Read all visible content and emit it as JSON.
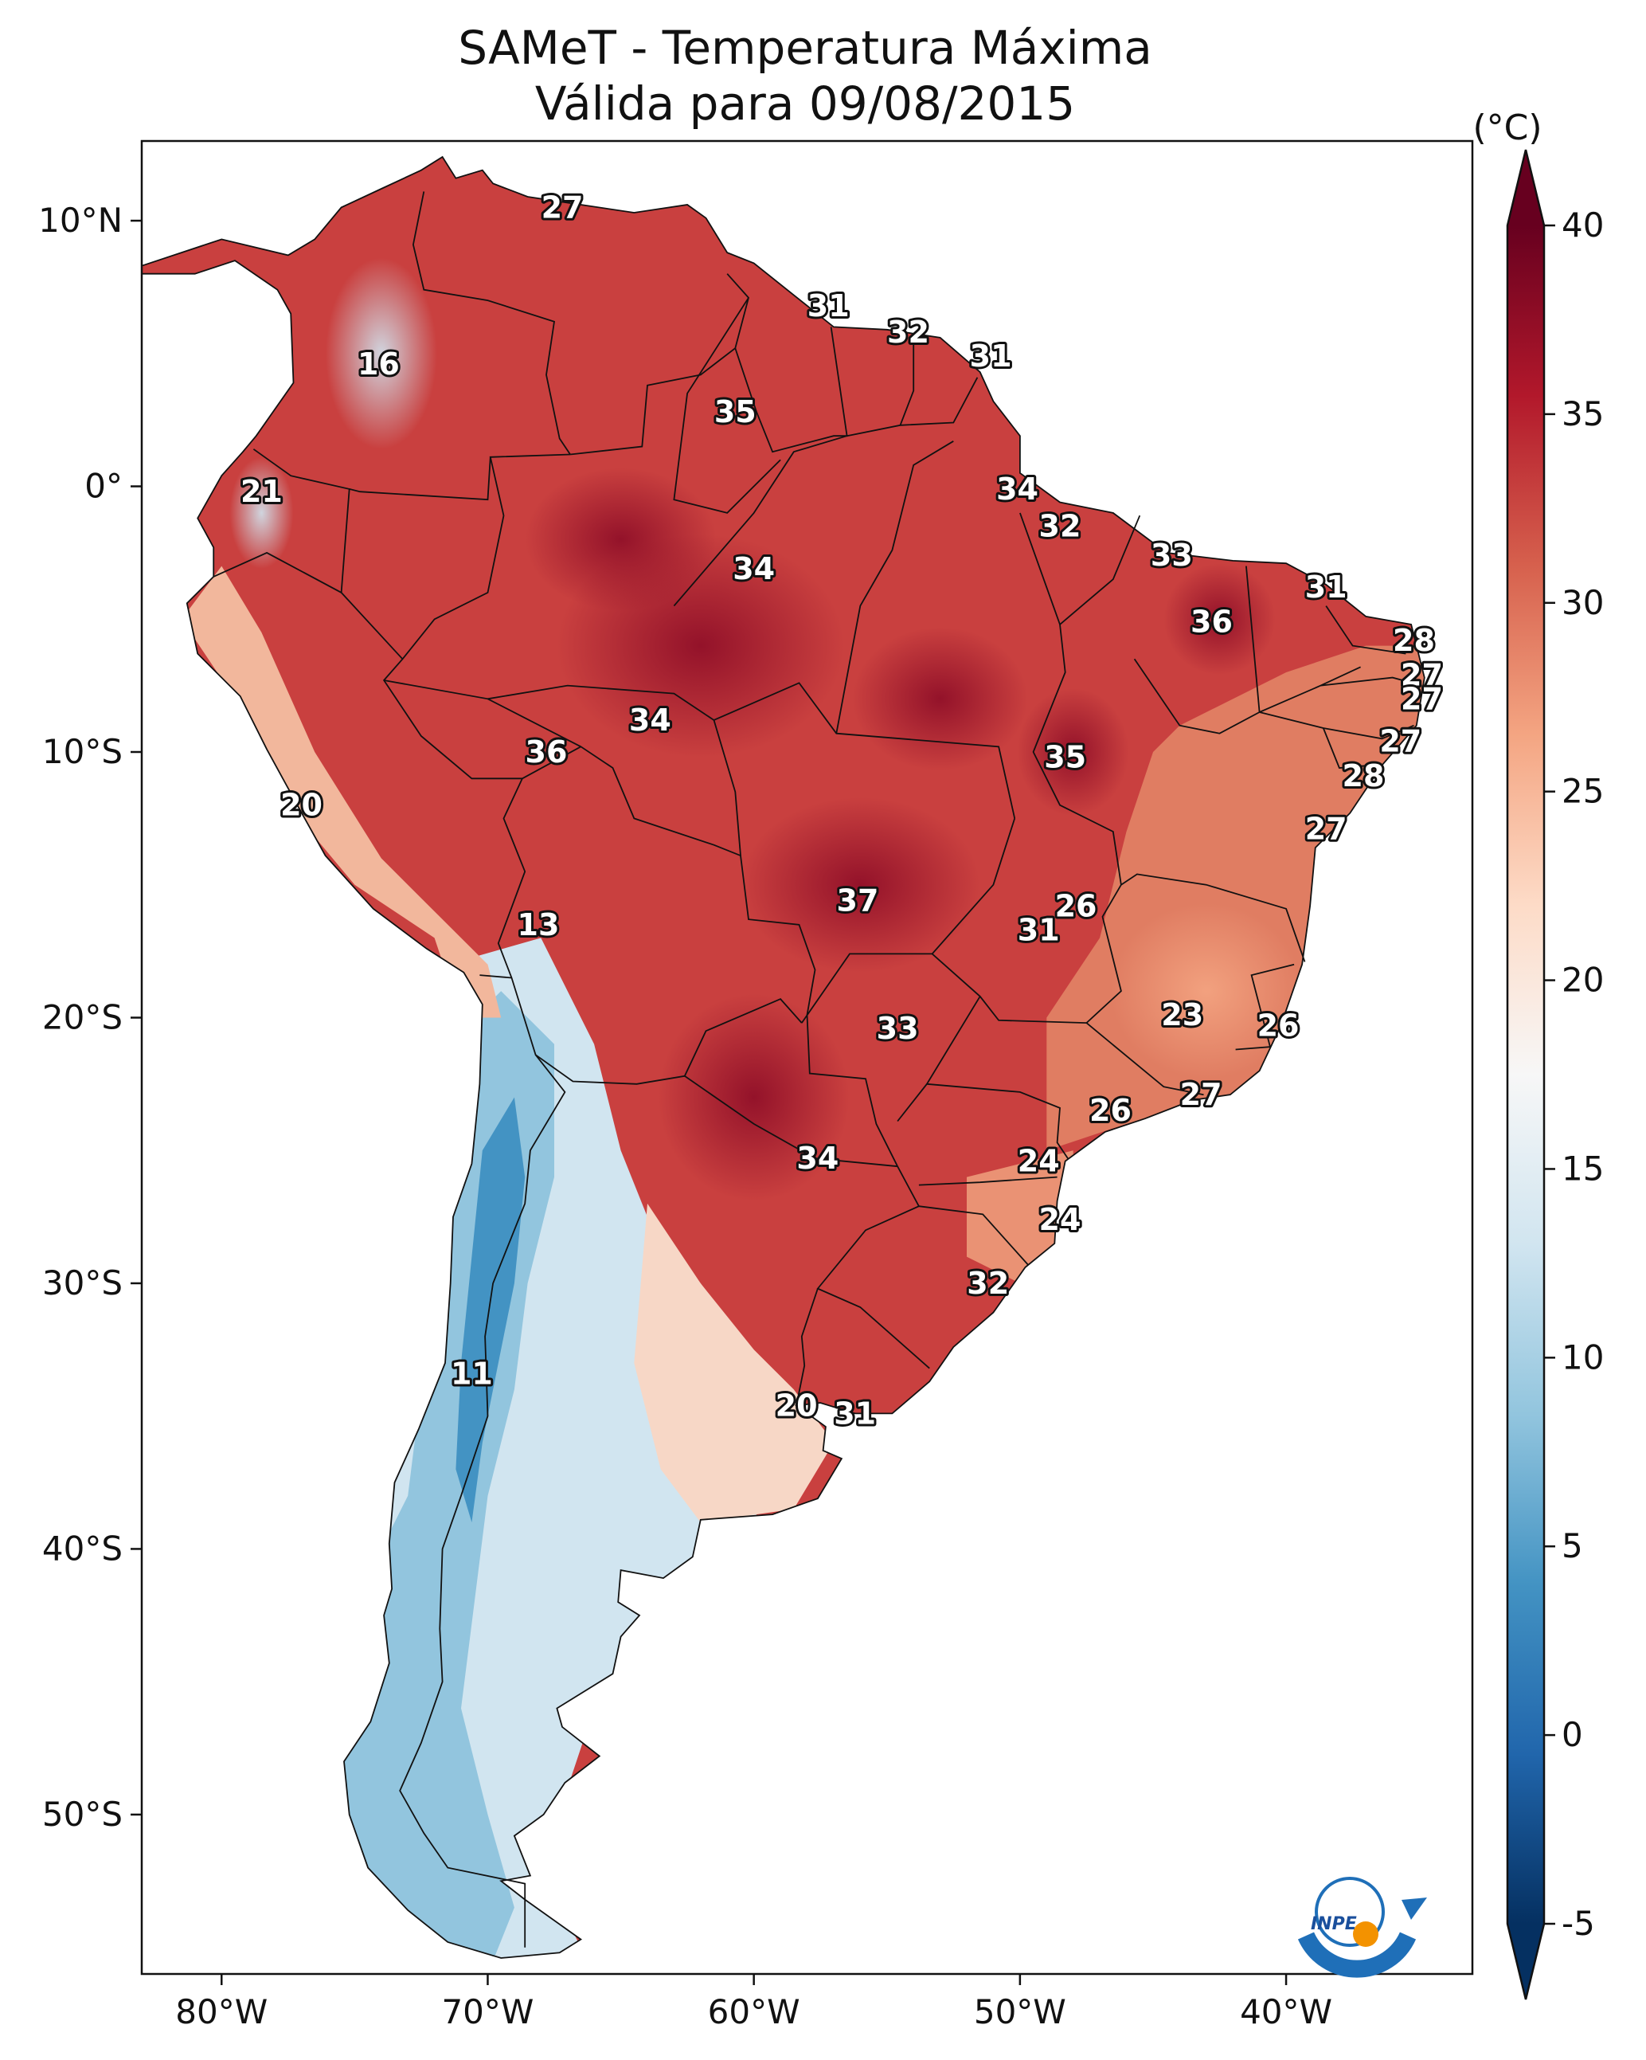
{
  "title": {
    "line1": "SAMeT - Temperatura Máxima",
    "line2": "Válida para 09/08/2015"
  },
  "axes": {
    "lat_ticks": [
      {
        "lat": 10,
        "label": "10°N"
      },
      {
        "lat": 0,
        "label": "0°"
      },
      {
        "lat": -10,
        "label": "10°S"
      },
      {
        "lat": -20,
        "label": "20°S"
      },
      {
        "lat": -30,
        "label": "30°S"
      },
      {
        "lat": -40,
        "label": "40°S"
      },
      {
        "lat": -50,
        "label": "50°S"
      }
    ],
    "lon_ticks": [
      {
        "lon": -80,
        "label": "80°W"
      },
      {
        "lon": -70,
        "label": "70°W"
      },
      {
        "lon": -60,
        "label": "60°W"
      },
      {
        "lon": -50,
        "label": "50°W"
      },
      {
        "lon": -40,
        "label": "40°W"
      }
    ],
    "lon_range": [
      -83,
      -33
    ],
    "lat_range": [
      -56,
      13
    ]
  },
  "colorbar": {
    "unit": "(°C)",
    "min": -5,
    "max": 40,
    "extend": "both",
    "ticks": [
      {
        "value": 40,
        "label": "40"
      },
      {
        "value": 35,
        "label": "35"
      },
      {
        "value": 30,
        "label": "30"
      },
      {
        "value": 25,
        "label": "25"
      },
      {
        "value": 20,
        "label": "20"
      },
      {
        "value": 15,
        "label": "15"
      },
      {
        "value": 10,
        "label": "10"
      },
      {
        "value": 5,
        "label": "5"
      },
      {
        "value": 0,
        "label": "0"
      },
      {
        "value": -5,
        "label": "-5"
      }
    ],
    "colors": [
      "#053061",
      "#2166ac",
      "#4393c3",
      "#92c5de",
      "#d1e5f0",
      "#f7f7f7",
      "#fddbc7",
      "#f4a582",
      "#d6604d",
      "#b2182b",
      "#67001f"
    ]
  },
  "city_labels": [
    {
      "lon": -67.2,
      "lat": 10.5,
      "text": "27"
    },
    {
      "lon": -74.1,
      "lat": 4.6,
      "text": "16"
    },
    {
      "lon": -57.2,
      "lat": 6.8,
      "text": "31"
    },
    {
      "lon": -54.2,
      "lat": 5.8,
      "text": "32"
    },
    {
      "lon": -51.1,
      "lat": 4.9,
      "text": "31"
    },
    {
      "lon": -60.7,
      "lat": 2.8,
      "text": "35"
    },
    {
      "lon": -78.5,
      "lat": -0.2,
      "text": "21"
    },
    {
      "lon": -50.1,
      "lat": -0.1,
      "text": "34"
    },
    {
      "lon": -48.5,
      "lat": -1.5,
      "text": "32"
    },
    {
      "lon": -44.3,
      "lat": -2.6,
      "text": "33"
    },
    {
      "lon": -60.0,
      "lat": -3.1,
      "text": "34"
    },
    {
      "lon": -38.5,
      "lat": -3.8,
      "text": "31"
    },
    {
      "lon": -42.8,
      "lat": -5.1,
      "text": "36"
    },
    {
      "lon": -35.2,
      "lat": -5.8,
      "text": "28"
    },
    {
      "lon": -34.9,
      "lat": -7.1,
      "text": "27"
    },
    {
      "lon": -34.9,
      "lat": -8.0,
      "text": "27"
    },
    {
      "lon": -63.9,
      "lat": -8.8,
      "text": "34"
    },
    {
      "lon": -35.7,
      "lat": -9.6,
      "text": "27"
    },
    {
      "lon": -67.8,
      "lat": -10.0,
      "text": "36"
    },
    {
      "lon": -48.3,
      "lat": -10.2,
      "text": "35"
    },
    {
      "lon": -37.1,
      "lat": -10.9,
      "text": "28"
    },
    {
      "lon": -77.0,
      "lat": -12.0,
      "text": "20"
    },
    {
      "lon": -38.5,
      "lat": -12.9,
      "text": "27"
    },
    {
      "lon": -56.1,
      "lat": -15.6,
      "text": "37"
    },
    {
      "lon": -47.9,
      "lat": -15.8,
      "text": "26"
    },
    {
      "lon": -49.3,
      "lat": -16.7,
      "text": "31"
    },
    {
      "lon": -68.1,
      "lat": -16.5,
      "text": "13"
    },
    {
      "lon": -43.9,
      "lat": -19.9,
      "text": "23"
    },
    {
      "lon": -40.3,
      "lat": -20.3,
      "text": "26"
    },
    {
      "lon": -54.6,
      "lat": -20.4,
      "text": "33"
    },
    {
      "lon": -43.2,
      "lat": -22.9,
      "text": "27"
    },
    {
      "lon": -46.6,
      "lat": -23.5,
      "text": "26"
    },
    {
      "lon": -57.6,
      "lat": -25.3,
      "text": "34"
    },
    {
      "lon": -49.3,
      "lat": -25.4,
      "text": "24"
    },
    {
      "lon": -48.5,
      "lat": -27.6,
      "text": "24"
    },
    {
      "lon": -51.2,
      "lat": -30.0,
      "text": "32"
    },
    {
      "lon": -70.6,
      "lat": -33.4,
      "text": "11"
    },
    {
      "lon": -58.4,
      "lat": -34.6,
      "text": "20"
    },
    {
      "lon": -56.2,
      "lat": -34.9,
      "text": "31"
    }
  ]
}
